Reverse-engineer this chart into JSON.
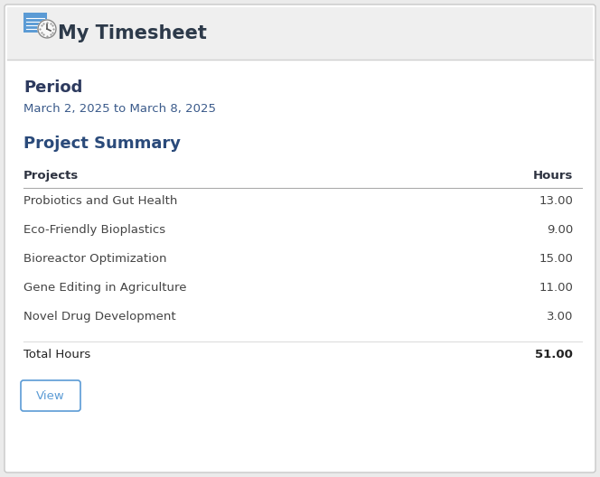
{
  "title": "My Timesheet",
  "period_label": "Period",
  "period_value": "March 2, 2025 to March 8, 2025",
  "section_title": "Project Summary",
  "col_header_project": "Projects",
  "col_header_hours": "Hours",
  "projects": [
    {
      "name": "Probiotics and Gut Health",
      "hours": "13.00"
    },
    {
      "name": "Eco-Friendly Bioplastics",
      "hours": "9.00"
    },
    {
      "name": "Bioreactor Optimization",
      "hours": "15.00"
    },
    {
      "name": "Gene Editing in Agriculture",
      "hours": "11.00"
    },
    {
      "name": "Novel Drug Development",
      "hours": "3.00"
    }
  ],
  "total_label": "Total Hours",
  "total_hours": "51.00",
  "view_button_label": "View",
  "bg_color": "#ebebeb",
  "card_color": "#ffffff",
  "header_bg": "#f0f0f0",
  "header_title_color": "#2d3a4a",
  "period_label_color": "#2d3a5e",
  "period_value_color": "#3a5a8a",
  "section_title_color": "#2a4a7a",
  "col_header_color": "#2d3240",
  "row_text_color": "#444444",
  "total_text_color": "#222222",
  "divider_color": "#dddddd",
  "button_border_color": "#5b9bd5",
  "button_text_color": "#5b9bd5",
  "icon_blue": "#5b9bd5"
}
